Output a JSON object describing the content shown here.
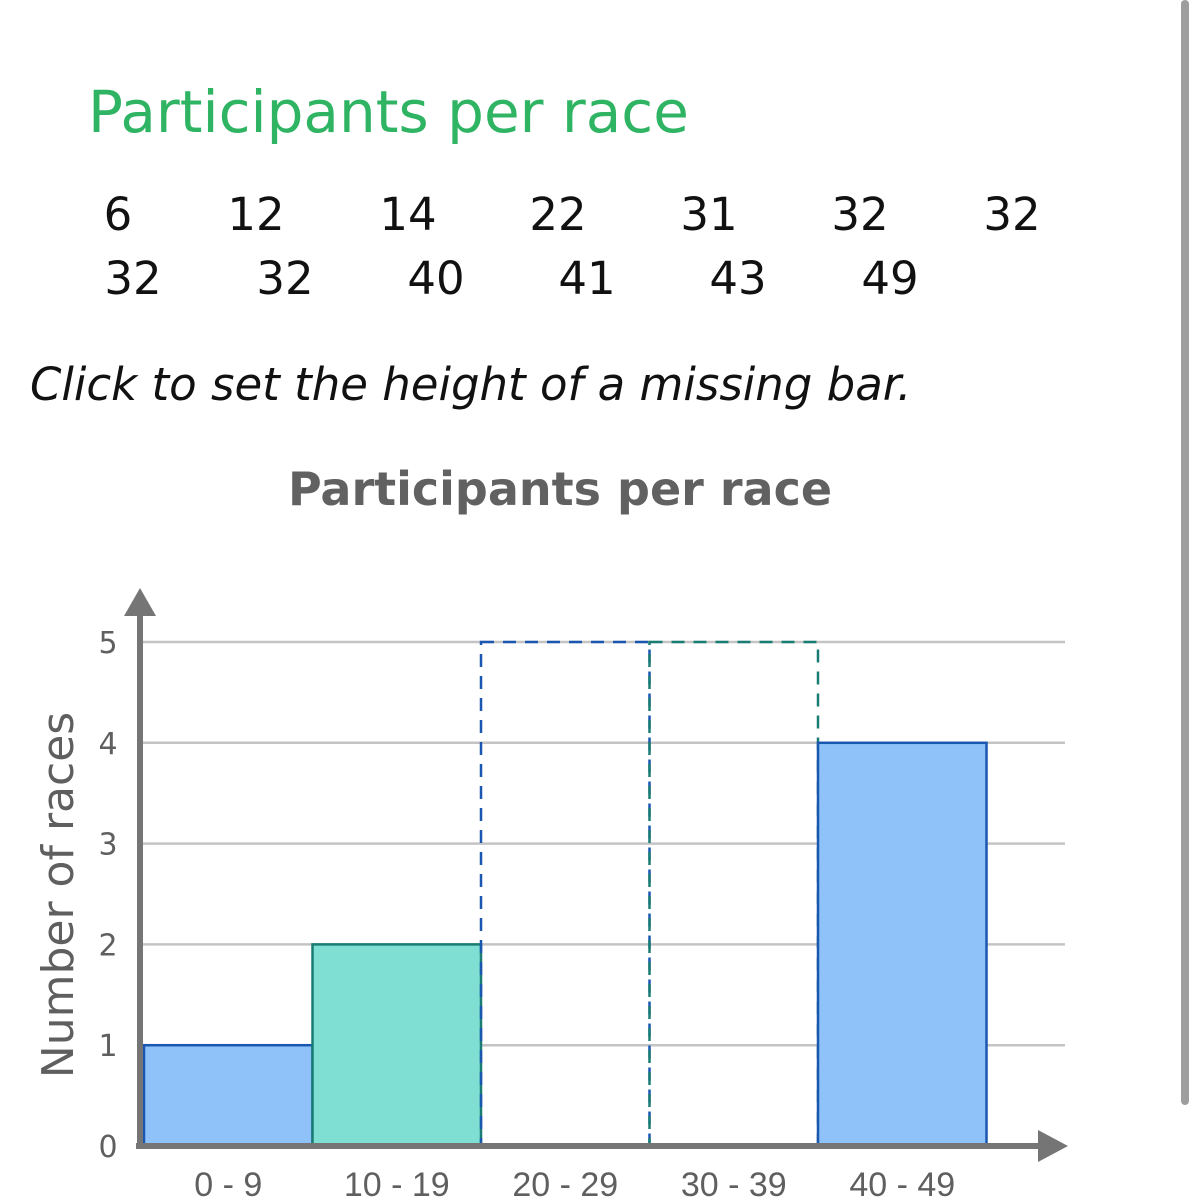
{
  "heading": "Participants per race",
  "data_list": {
    "row1": [
      "6",
      "12",
      "14",
      "22",
      "31",
      "32",
      "32"
    ],
    "row2": [
      "32",
      "32",
      "40",
      "41",
      "43",
      "49"
    ]
  },
  "instruction": "Click to set the height of a missing bar.",
  "chart_data": {
    "type": "bar",
    "title": "Participants per race",
    "ylabel": "Number of races",
    "xlabel": "",
    "categories": [
      "0 - 9",
      "10 - 19",
      "20 - 29",
      "30 - 39",
      "40 - 49"
    ],
    "values": [
      1,
      2,
      null,
      null,
      4
    ],
    "ylim": [
      0,
      5
    ],
    "yticks": [
      "0",
      "1",
      "2",
      "3",
      "4",
      "5"
    ],
    "grid": true,
    "bar_colors": [
      "#8ec2f8",
      "#7fdfd2",
      "#8ec2f8",
      "#7fdfd2",
      "#8ec2f8"
    ],
    "bar_edge_colors": [
      "#1a57b0",
      "#1a7d73",
      "#1a57b0",
      "#1a7d73",
      "#1a57b0"
    ],
    "missing_bar_placeholder_value": 5
  }
}
